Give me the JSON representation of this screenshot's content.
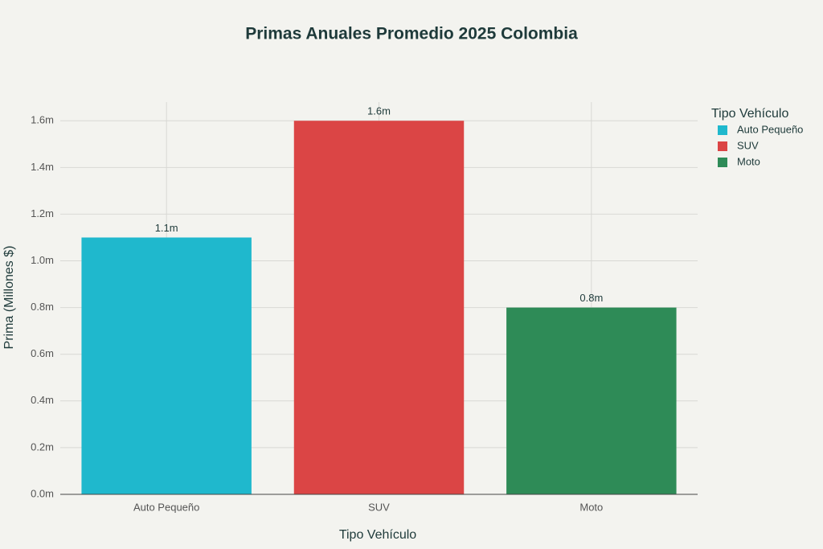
{
  "chart_data": {
    "type": "bar",
    "title": "Primas Anuales Promedio 2025 Colombia",
    "x_label": "Tipo Vehículo",
    "y_label": "Prima (Millones $)",
    "categories": [
      "Auto Pequeño",
      "SUV",
      "Moto"
    ],
    "values": [
      1.1,
      1.6,
      0.8
    ],
    "value_labels": [
      "1.1m",
      "1.6m",
      "0.8m"
    ],
    "colors": [
      "#1fb8cd",
      "#db4545",
      "#2e8b57"
    ],
    "legend_title": "Tipo Vehículo",
    "legend": "top-right",
    "ylim": [
      0,
      1.68
    ],
    "yticks": [
      {
        "value": 0,
        "label": "0.0m"
      },
      {
        "value": 0.2,
        "label": "0.2m"
      },
      {
        "value": 0.4,
        "label": "0.4m"
      },
      {
        "value": 0.6,
        "label": "0.6m"
      },
      {
        "value": 0.8,
        "label": "0.8m"
      },
      {
        "value": 1.0,
        "label": "1.0m"
      },
      {
        "value": 1.2,
        "label": "1.2m"
      },
      {
        "value": 1.4,
        "label": "1.4m"
      },
      {
        "value": 1.6,
        "label": "1.6m"
      }
    ],
    "grid": true
  }
}
